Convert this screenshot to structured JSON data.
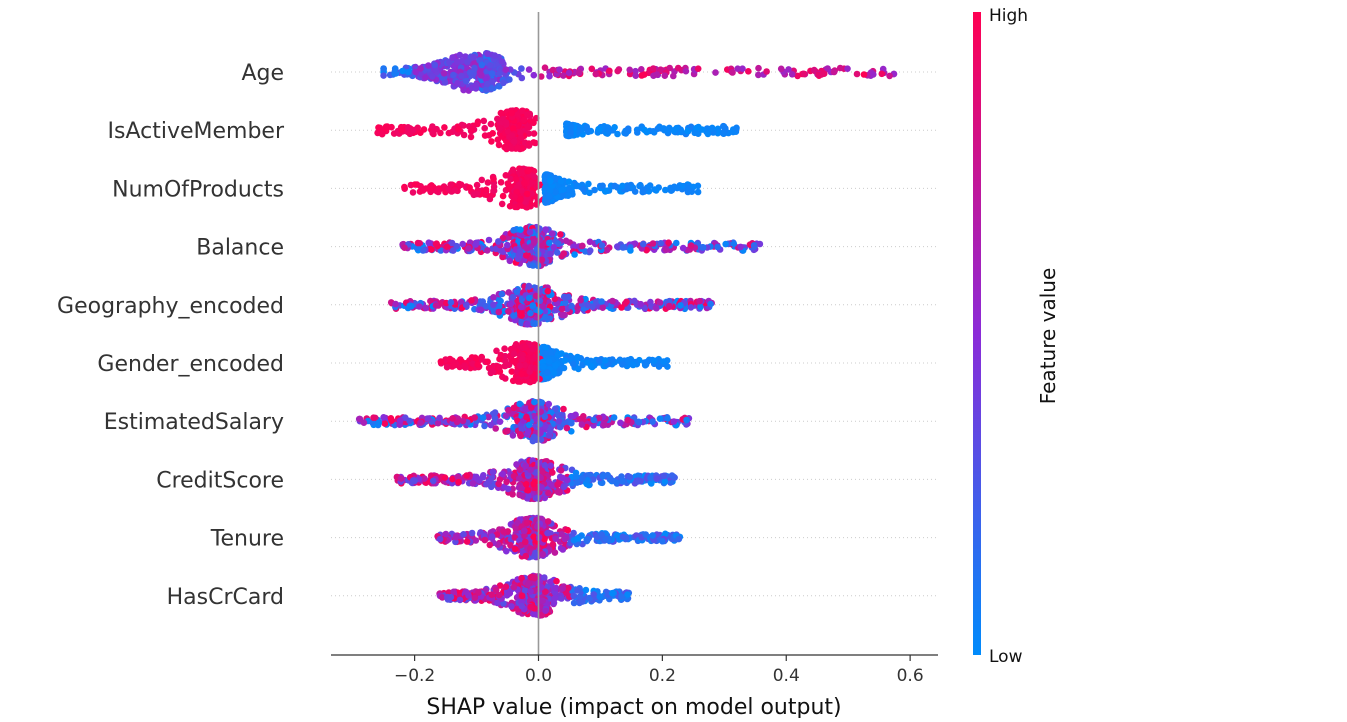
{
  "chart_data": {
    "type": "scatter",
    "subtype": "shap-beeswarm",
    "title": "",
    "xlabel": "SHAP value (impact on model output)",
    "ylabel": "",
    "xlim": [
      -0.335,
      0.645
    ],
    "x_ticks": [
      -0.2,
      0.0,
      0.2,
      0.4,
      0.6
    ],
    "x_tick_labels": [
      "−0.2",
      "0.0",
      "0.2",
      "0.4",
      "0.6"
    ],
    "zero_line": true,
    "grid": false,
    "colorbar": {
      "title": "Feature value",
      "high_label": "High",
      "low_label": "Low",
      "low_color": "#008bfb",
      "high_color": "#ff0052"
    },
    "features": [
      {
        "name": "Age",
        "min": -0.25,
        "max": 0.6,
        "mode": "age"
      },
      {
        "name": "IsActiveMember",
        "min": -0.26,
        "max": 0.32,
        "mode": "binary_high_neg",
        "neg_peak": -0.035,
        "pos_peak": 0.045
      },
      {
        "name": "NumOfProducts",
        "min": -0.22,
        "max": 0.26,
        "mode": "binary_high_neg",
        "neg_peak": -0.025,
        "pos_peak": 0.01
      },
      {
        "name": "Balance",
        "min": -0.22,
        "max": 0.36,
        "mode": "mixed",
        "peak": -0.01
      },
      {
        "name": "Geography_encoded",
        "min": -0.24,
        "max": 0.28,
        "mode": "mixed",
        "peak": -0.01
      },
      {
        "name": "Gender_encoded",
        "min": -0.16,
        "max": 0.21,
        "mode": "binary_high_neg",
        "neg_peak": -0.02,
        "pos_peak": 0.005
      },
      {
        "name": "EstimatedSalary",
        "min": -0.29,
        "max": 0.25,
        "mode": "mixed",
        "peak": -0.005
      },
      {
        "name": "CreditScore",
        "min": -0.23,
        "max": 0.22,
        "mode": "mixed_low_pos",
        "peak": -0.005
      },
      {
        "name": "Tenure",
        "min": -0.17,
        "max": 0.23,
        "mode": "mixed_low_pos",
        "peak": -0.01
      },
      {
        "name": "HasCrCard",
        "min": -0.16,
        "max": 0.15,
        "mode": "mixed_low_pos",
        "peak": -0.005
      }
    ]
  }
}
